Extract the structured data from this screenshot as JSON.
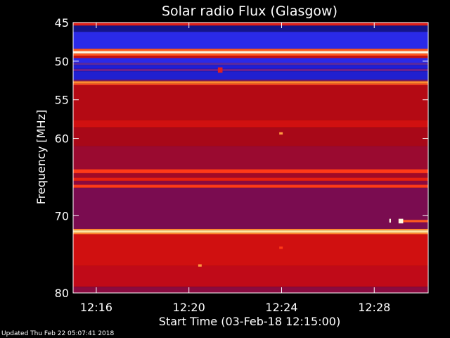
{
  "chart_data": {
    "type": "heatmap",
    "title": "Solar radio Flux (Glasgow)",
    "xlabel": "Start Time (03-Feb-18 12:15:00)",
    "ylabel": "Frequency [MHz]",
    "x_unit": "minutes after 12:15:00",
    "xlim": [
      0,
      15.33
    ],
    "ylim": [
      45,
      80
    ],
    "y_inverted": true,
    "x_ticks": [
      {
        "value": 1,
        "label": "12:16"
      },
      {
        "value": 5,
        "label": "12:20"
      },
      {
        "value": 9,
        "label": "12:24"
      },
      {
        "value": 13,
        "label": "12:28"
      }
    ],
    "y_ticks": [
      {
        "value": 45,
        "label": "45"
      },
      {
        "value": 50,
        "label": "50"
      },
      {
        "value": 55,
        "label": "55"
      },
      {
        "value": 60,
        "label": "60"
      },
      {
        "value": 70,
        "label": "70"
      },
      {
        "value": 80,
        "label": "80"
      }
    ],
    "colormap": [
      "#000000",
      "#1010a0",
      "#2020ff",
      "#5030c0",
      "#8a0a3a",
      "#cc0000",
      "#ff2a10",
      "#ff9a40",
      "#fff8e0"
    ],
    "frequency_bands": [
      {
        "from": 45.0,
        "to": 45.4,
        "color": "#e0201a"
      },
      {
        "from": 45.4,
        "to": 46.2,
        "color": "#14148a"
      },
      {
        "from": 46.2,
        "to": 48.4,
        "color": "#2a2ae8"
      },
      {
        "from": 48.4,
        "to": 48.7,
        "color": "#ff5a20"
      },
      {
        "from": 48.7,
        "to": 49.0,
        "color": "#fff8e0"
      },
      {
        "from": 49.0,
        "to": 49.3,
        "color": "#ff5a20"
      },
      {
        "from": 49.3,
        "to": 49.6,
        "color": "#c81010"
      },
      {
        "from": 49.6,
        "to": 50.2,
        "color": "#2a2ae8"
      },
      {
        "from": 50.2,
        "to": 50.5,
        "color": "#5a2aa0"
      },
      {
        "from": 50.5,
        "to": 51.0,
        "color": "#1e1ed8"
      },
      {
        "from": 51.0,
        "to": 51.3,
        "color": "#6a2090"
      },
      {
        "from": 51.3,
        "to": 52.4,
        "color": "#2020d0"
      },
      {
        "from": 52.4,
        "to": 52.6,
        "color": "#7a1a60"
      },
      {
        "from": 52.6,
        "to": 52.9,
        "color": "#ff8a30"
      },
      {
        "from": 52.9,
        "to": 53.1,
        "color": "#ff4a20"
      },
      {
        "from": 53.1,
        "to": 57.6,
        "color": "#b40a14"
      },
      {
        "from": 57.6,
        "to": 58.6,
        "color": "#d01010"
      },
      {
        "from": 58.6,
        "to": 61.0,
        "color": "#a80818"
      },
      {
        "from": 61.0,
        "to": 64.0,
        "color": "#9a0a30"
      },
      {
        "from": 64.0,
        "to": 64.5,
        "color": "#ff3a18"
      },
      {
        "from": 64.5,
        "to": 65.1,
        "color": "#a00a28"
      },
      {
        "from": 65.1,
        "to": 65.5,
        "color": "#e82010"
      },
      {
        "from": 65.5,
        "to": 66.0,
        "color": "#8a0a40"
      },
      {
        "from": 66.0,
        "to": 66.4,
        "color": "#ff3a18"
      },
      {
        "from": 66.4,
        "to": 71.7,
        "color": "#7a0c50"
      },
      {
        "from": 71.7,
        "to": 71.9,
        "color": "#ff8a30"
      },
      {
        "from": 71.9,
        "to": 72.2,
        "color": "#ffe6a0"
      },
      {
        "from": 72.2,
        "to": 72.4,
        "color": "#ff8a30"
      },
      {
        "from": 72.4,
        "to": 76.5,
        "color": "#d01010"
      },
      {
        "from": 76.5,
        "to": 79.2,
        "color": "#c00a18"
      },
      {
        "from": 79.2,
        "to": 80.0,
        "color": "#8a0a40"
      }
    ],
    "features": [
      {
        "t": 8.9,
        "t_end": 9.05,
        "f": 59.2,
        "f_end": 59.5,
        "color": "#ff9a40"
      },
      {
        "t": 8.9,
        "t_end": 9.05,
        "f": 74.0,
        "f_end": 74.3,
        "color": "#ff3a18"
      },
      {
        "t": 6.25,
        "t_end": 6.45,
        "f": 50.8,
        "f_end": 51.5,
        "color": "#e02020"
      },
      {
        "t": 5.4,
        "t_end": 5.55,
        "f": 76.3,
        "f_end": 76.6,
        "color": "#ff9a40"
      },
      {
        "t": 13.65,
        "t_end": 13.72,
        "f": 70.4,
        "f_end": 70.9,
        "color": "#fff8e0"
      },
      {
        "t": 14.05,
        "t_end": 15.33,
        "f": 70.55,
        "f_end": 70.85,
        "color": "#ff5a20"
      },
      {
        "t": 14.05,
        "t_end": 14.25,
        "f": 70.4,
        "f_end": 71.0,
        "color": "#fff8e0"
      }
    ]
  },
  "footer": {
    "updated": "Updated Thu Feb 22 05:07:41 2018"
  }
}
